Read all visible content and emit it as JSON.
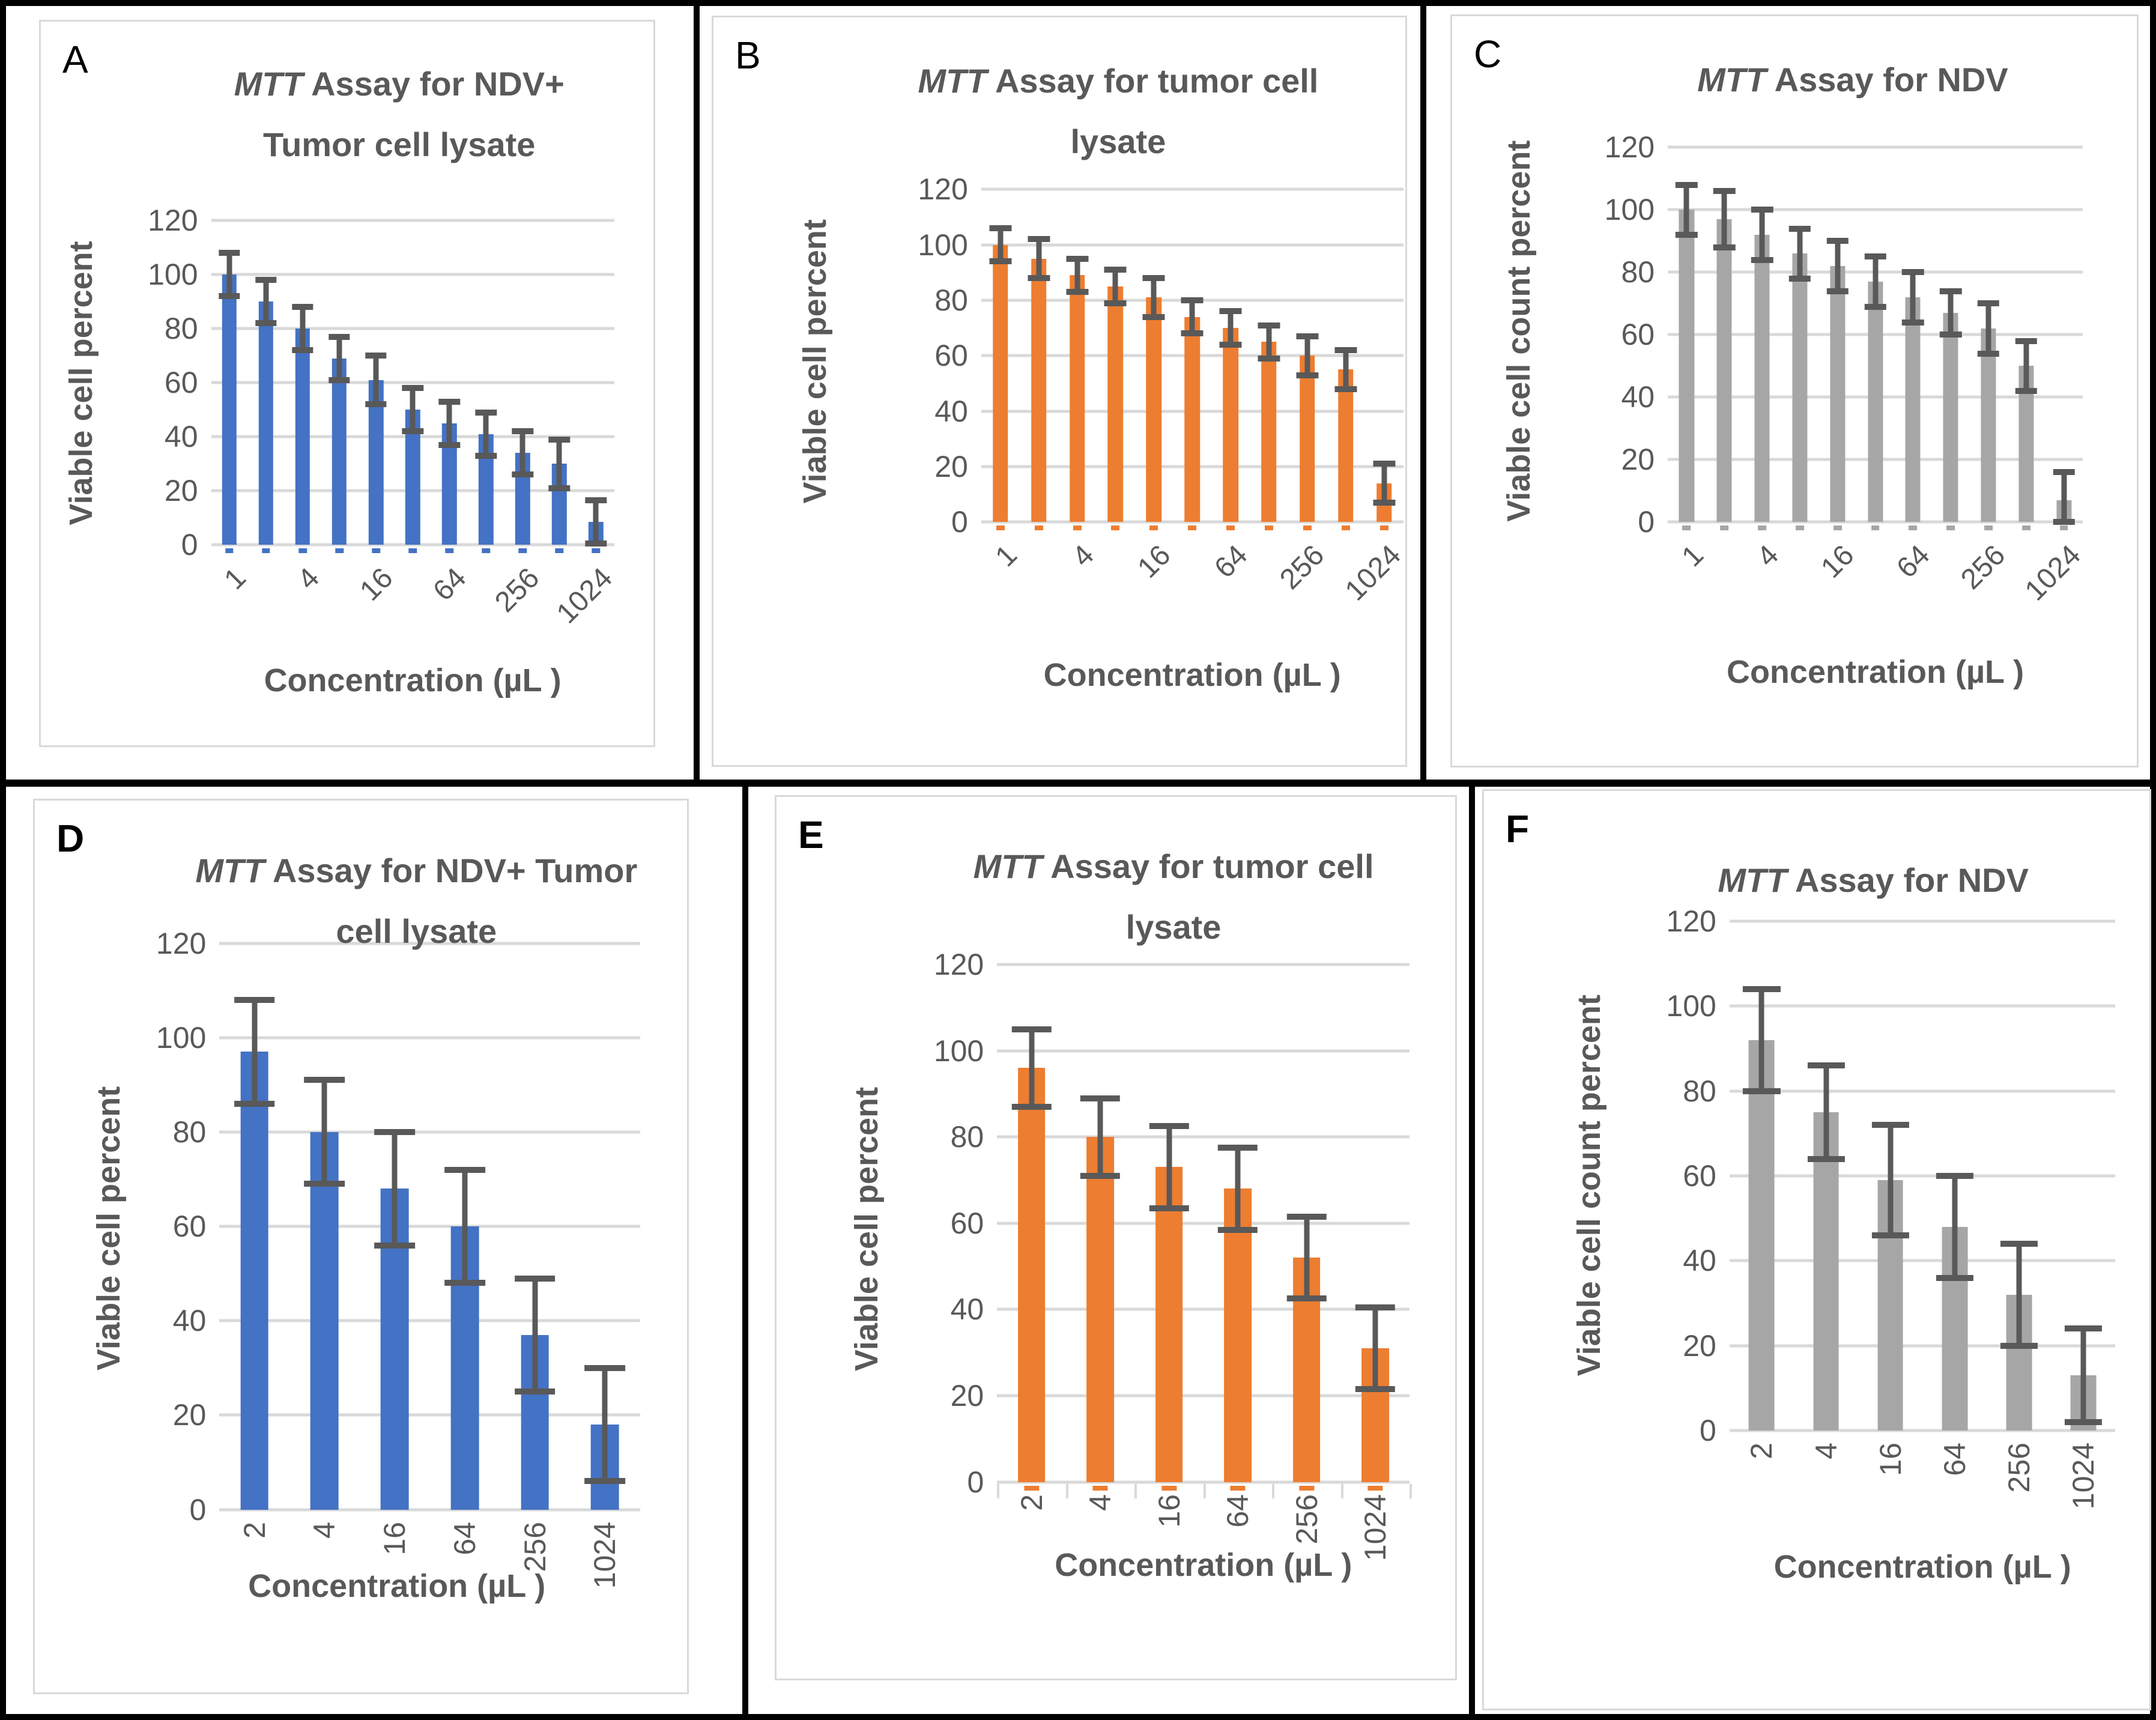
{
  "chart_data": [
    {
      "panel_letter": "A",
      "type": "bar",
      "title_italic": "MTT",
      "title_line1": " Assay for NDV+",
      "title_line2": "Tumor cell lysate",
      "ylabel": "Viable cell percent",
      "xlabel": "Concentration (µL )",
      "bar_color": "#4472C4",
      "error_color": "#595959",
      "gridline_color": "#D9D9D9",
      "ylim": [
        0,
        120
      ],
      "y_ticks": [
        0,
        20,
        40,
        60,
        80,
        100,
        120
      ],
      "grid": "horizontal",
      "x_tick_labels": [
        "1",
        "4",
        "16",
        "64",
        "256",
        "1024"
      ],
      "x_tick_bar_indices": [
        0,
        2,
        4,
        6,
        8,
        10
      ],
      "x_tick_rotation": 45,
      "bar_dash": true,
      "boundary_ticks": false,
      "values": [
        100,
        90,
        80,
        69,
        61,
        50,
        45,
        41,
        34,
        30,
        8.5
      ],
      "errors": [
        8,
        8,
        8,
        8,
        9,
        8,
        8,
        8,
        8,
        9,
        8
      ]
    },
    {
      "panel_letter": "B",
      "type": "bar",
      "title_italic": "MTT",
      "title_line1": " Assay for tumor cell",
      "title_line2": "lysate",
      "ylabel": "Viable cell percent",
      "xlabel": "Concentration (µL )",
      "bar_color": "#ED7D31",
      "error_color": "#595959",
      "gridline_color": "#D9D9D9",
      "ylim": [
        0,
        120
      ],
      "y_ticks": [
        0,
        20,
        40,
        60,
        80,
        100,
        120
      ],
      "grid": "horizontal",
      "x_tick_labels": [
        "1",
        "4",
        "16",
        "64",
        "256",
        "1024"
      ],
      "x_tick_bar_indices": [
        0,
        2,
        4,
        6,
        8,
        10
      ],
      "x_tick_rotation": 45,
      "bar_dash": true,
      "boundary_ticks": false,
      "values": [
        100,
        95,
        89,
        85,
        81,
        74,
        70,
        65,
        60,
        55,
        14
      ],
      "errors": [
        6,
        7,
        6,
        6,
        7,
        6,
        6,
        6,
        7,
        7,
        7
      ]
    },
    {
      "panel_letter": "C",
      "type": "bar",
      "title_italic": "MTT",
      "title_line1": " Assay for NDV",
      "title_line2": "",
      "ylabel": "Viable cell count percent",
      "xlabel": "Concentration (µL )",
      "bar_color": "#A6A6A6",
      "error_color": "#595959",
      "gridline_color": "#D9D9D9",
      "ylim": [
        0,
        120
      ],
      "y_ticks": [
        0,
        20,
        40,
        60,
        80,
        100,
        120
      ],
      "grid": "horizontal",
      "x_tick_labels": [
        "1",
        "4",
        "16",
        "64",
        "256",
        "1024"
      ],
      "x_tick_bar_indices": [
        0,
        2,
        4,
        6,
        8,
        10
      ],
      "x_tick_rotation": 45,
      "bar_dash": true,
      "boundary_ticks": false,
      "values": [
        100,
        97,
        92,
        86,
        82,
        77,
        72,
        67,
        62,
        50,
        7
      ],
      "errors": [
        8,
        9,
        8,
        8,
        8,
        8,
        8,
        7,
        8,
        8,
        9
      ]
    },
    {
      "panel_letter": "D",
      "type": "bar",
      "title_italic": "MTT",
      "title_line1": " Assay for NDV+ Tumor",
      "title_line2": "cell lysate",
      "ylabel": "Viable cell percent",
      "xlabel": "Concentration (µL )",
      "bar_color": "#4472C4",
      "error_color": "#595959",
      "gridline_color": "#D9D9D9",
      "ylim": [
        0,
        120
      ],
      "y_ticks": [
        0,
        20,
        40,
        60,
        80,
        100,
        120
      ],
      "grid": "horizontal",
      "x_tick_labels": [
        "2",
        "4",
        "16",
        "64",
        "256",
        "1024"
      ],
      "x_tick_bar_indices": [
        0,
        1,
        2,
        3,
        4,
        5
      ],
      "x_tick_rotation": 90,
      "bar_dash": false,
      "boundary_ticks": false,
      "values": [
        97,
        80,
        68,
        60,
        37,
        18
      ],
      "errors": [
        11,
        11,
        12,
        12,
        12,
        12
      ]
    },
    {
      "panel_letter": "E",
      "type": "bar",
      "title_italic": "MTT",
      "title_line1": " Assay for tumor cell",
      "title_line2": "lysate",
      "ylabel": "Viable cell percent",
      "xlabel": "Concentration (µL )",
      "bar_color": "#ED7D31",
      "error_color": "#595959",
      "gridline_color": "#D9D9D9",
      "ylim": [
        0,
        120
      ],
      "y_ticks": [
        0,
        20,
        40,
        60,
        80,
        100,
        120
      ],
      "grid": "horizontal",
      "x_tick_labels": [
        "2",
        "4",
        "16",
        "64",
        "256",
        "1024"
      ],
      "x_tick_bar_indices": [
        0,
        1,
        2,
        3,
        4,
        5
      ],
      "x_tick_rotation": 90,
      "bar_dash": true,
      "boundary_ticks": true,
      "values": [
        96,
        80,
        73,
        68,
        52,
        31
      ],
      "errors": [
        9,
        9,
        9.5,
        9.5,
        9.5,
        9.5
      ]
    },
    {
      "panel_letter": "F",
      "type": "bar",
      "title_italic": "MTT",
      "title_line1": " Assay for NDV",
      "title_line2": "",
      "ylabel": "Viable cell count percent",
      "xlabel": "Concentration (µL )",
      "bar_color": "#A6A6A6",
      "error_color": "#595959",
      "gridline_color": "#D9D9D9",
      "ylim": [
        0,
        120
      ],
      "y_ticks": [
        0,
        20,
        40,
        60,
        80,
        100,
        120
      ],
      "grid": "horizontal",
      "x_tick_labels": [
        "2",
        "4",
        "16",
        "64",
        "256",
        "1024"
      ],
      "x_tick_bar_indices": [
        0,
        1,
        2,
        3,
        4,
        5
      ],
      "x_tick_rotation": 90,
      "bar_dash": false,
      "boundary_ticks": false,
      "values": [
        92,
        75,
        59,
        48,
        32,
        13
      ],
      "errors": [
        12,
        11,
        13,
        12,
        12,
        11
      ]
    }
  ]
}
